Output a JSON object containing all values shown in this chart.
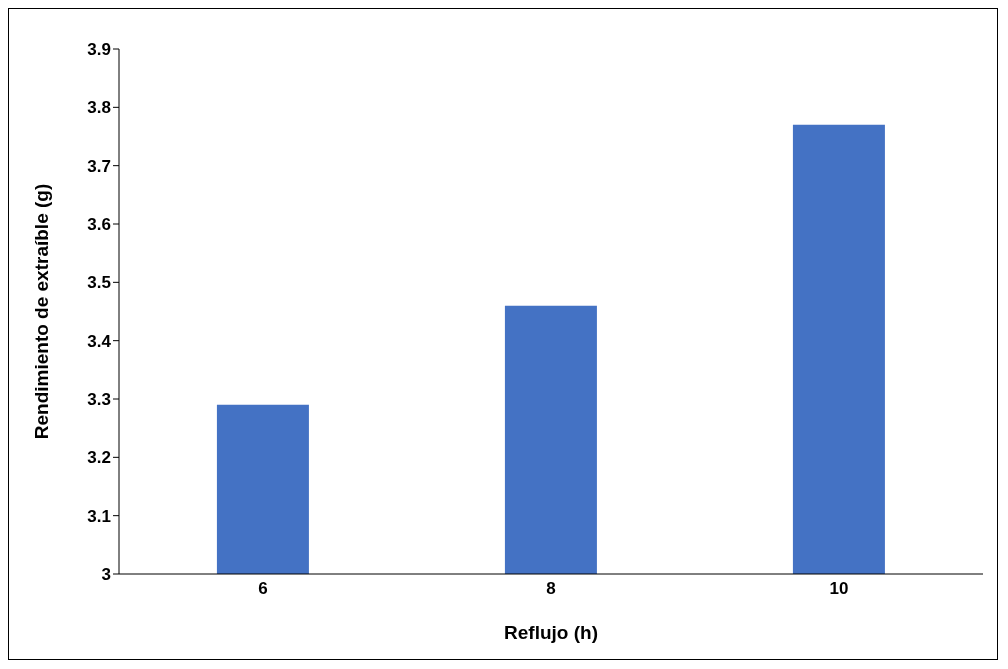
{
  "chart_data": {
    "type": "bar",
    "xlabel": "Reflujo (h)",
    "ylabel": "Rendimiento de extraíble (g)",
    "categories": [
      "6",
      "8",
      "10"
    ],
    "values": [
      3.29,
      3.46,
      3.77
    ],
    "color": "#4472c4",
    "ylim": [
      3,
      3.9
    ],
    "yticks": [
      3,
      3.1,
      3.2,
      3.3,
      3.4,
      3.5,
      3.6,
      3.7,
      3.8,
      3.9
    ],
    "grid": false
  }
}
